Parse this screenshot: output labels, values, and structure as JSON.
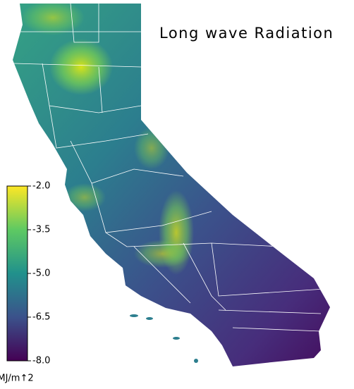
{
  "title": "Long wave Radiation",
  "colorbar": {
    "label": "MJ/m↑2",
    "lim": [
      -8,
      -2
    ],
    "ticks": [
      {
        "value": -2,
        "label": "-2.0"
      },
      -3.5,
      {
        "value": -5,
        "label": "-5.0"
      },
      -6.5,
      {
        "value": -8,
        "label": "-8.0"
      }
    ]
  }
}
